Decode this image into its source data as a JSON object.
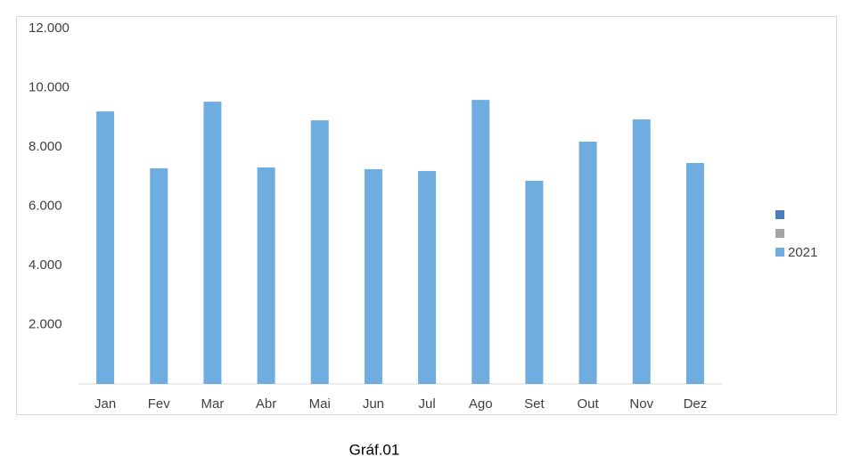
{
  "chart_data": {
    "type": "bar",
    "caption": "Gráf.01",
    "categories": [
      "Jan",
      "Fev",
      "Mar",
      "Abr",
      "Mai",
      "Jun",
      "Jul",
      "Ago",
      "Set",
      "Out",
      "Nov",
      "Dez"
    ],
    "series": [
      {
        "name": null,
        "color": "#4a7ebb",
        "values": [
          null,
          null,
          null,
          null,
          null,
          null,
          null,
          null,
          null,
          null,
          null,
          null
        ]
      },
      {
        "name": null,
        "color": "#a5a5a5",
        "values": [
          null,
          null,
          null,
          null,
          null,
          null,
          null,
          null,
          null,
          null,
          null,
          null
        ]
      },
      {
        "name": "2021",
        "color": "#6fade0",
        "values": [
          9200,
          7280,
          9530,
          7310,
          8900,
          7250,
          7190,
          9590,
          6860,
          8180,
          8930,
          7460
        ]
      }
    ],
    "ylim": [
      0,
      12000
    ],
    "yticks": [
      {
        "value": 2000,
        "label": "2.000"
      },
      {
        "value": 4000,
        "label": "4.000"
      },
      {
        "value": 6000,
        "label": "6.000"
      },
      {
        "value": 8000,
        "label": "8.000"
      },
      {
        "value": 10000,
        "label": "10.000"
      },
      {
        "value": 12000,
        "label": "12.000"
      }
    ],
    "grid": false,
    "legend": "right"
  }
}
